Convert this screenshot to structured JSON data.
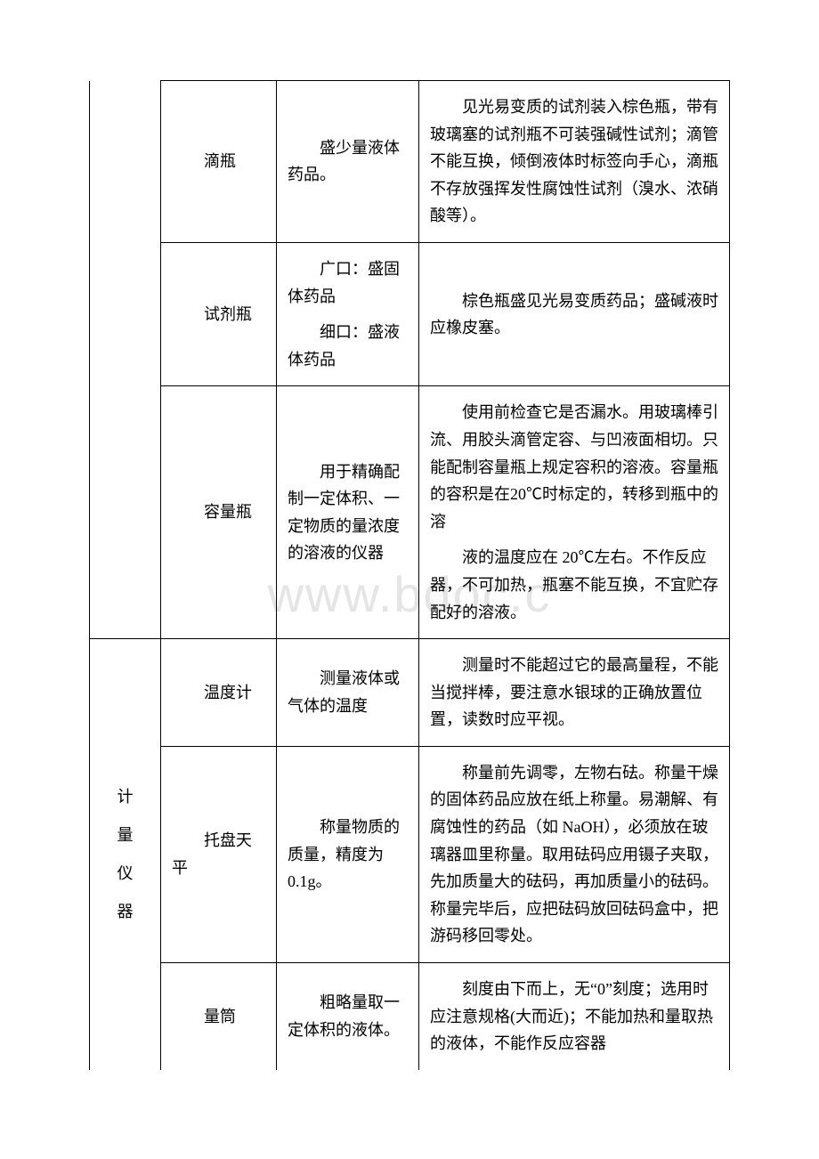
{
  "watermark": "www.bdoc.c",
  "table": {
    "rows": [
      {
        "category": "",
        "name": "滴瓶",
        "use": "盛少量液体药品。",
        "note": "见光易变质的试剂装入棕色瓶，带有玻璃塞的试剂瓶不可装强碱性试剂；滴管不能互换，倾倒液体时标签向手心，滴瓶不存放强挥发性腐蚀性试剂（溴水、浓硝酸等）。"
      },
      {
        "category": "",
        "name": "试剂瓶",
        "use_lines": [
          "广口：盛固体药品",
          "细口：盛液体药品"
        ],
        "note": "棕色瓶盛见光易变质药品；盛碱液时应橡皮塞。"
      },
      {
        "category": "",
        "name": "容量瓶",
        "use": "用于精确配制一定体积、一定物质的量浓度的溶液的仪器",
        "note_paras": [
          "使用前检查它是否漏水。用玻璃棒引流、用胶头滴管定容、与凹液面相切。只能配制容量瓶上规定容积的溶液。容量瓶的容积是在20℃时标定的，转移到瓶中的溶",
          "液的温度应在 20℃左右。不作反应器，不可加热，瓶塞不能互换，不宜贮存配好的溶液。"
        ]
      },
      {
        "category": "计量仪器",
        "category_rowspan": 3,
        "name": "温度计",
        "use": "测量液体或气体的温度",
        "note": "测量时不能超过它的最高量程，不能当搅拌棒，要注意水银球的正确放置位置，读数时应平视。"
      },
      {
        "category": "",
        "name": "托盘天平",
        "use": "称量物质的质量，精度为 0.1g。",
        "note": "称量前先调零，左物右砝。称量干燥的固体药品应放在纸上称量。易潮解、有腐蚀性的药品（如 NaOH），必须放在玻璃器皿里称量。取用砝码应用镊子夹取，先加质量大的砝码，再加质量小的砝码。称量完毕后，应把砝码放回砝码盒中，把游码移回零处。"
      },
      {
        "category": "",
        "name": "量筒",
        "use": "粗略量取一定体积的液体。",
        "note": "刻度由下而上，无“0”刻度；选用时应注意规格(大而近)；不能加热和量取热的液体，不能作反应容器"
      }
    ]
  }
}
